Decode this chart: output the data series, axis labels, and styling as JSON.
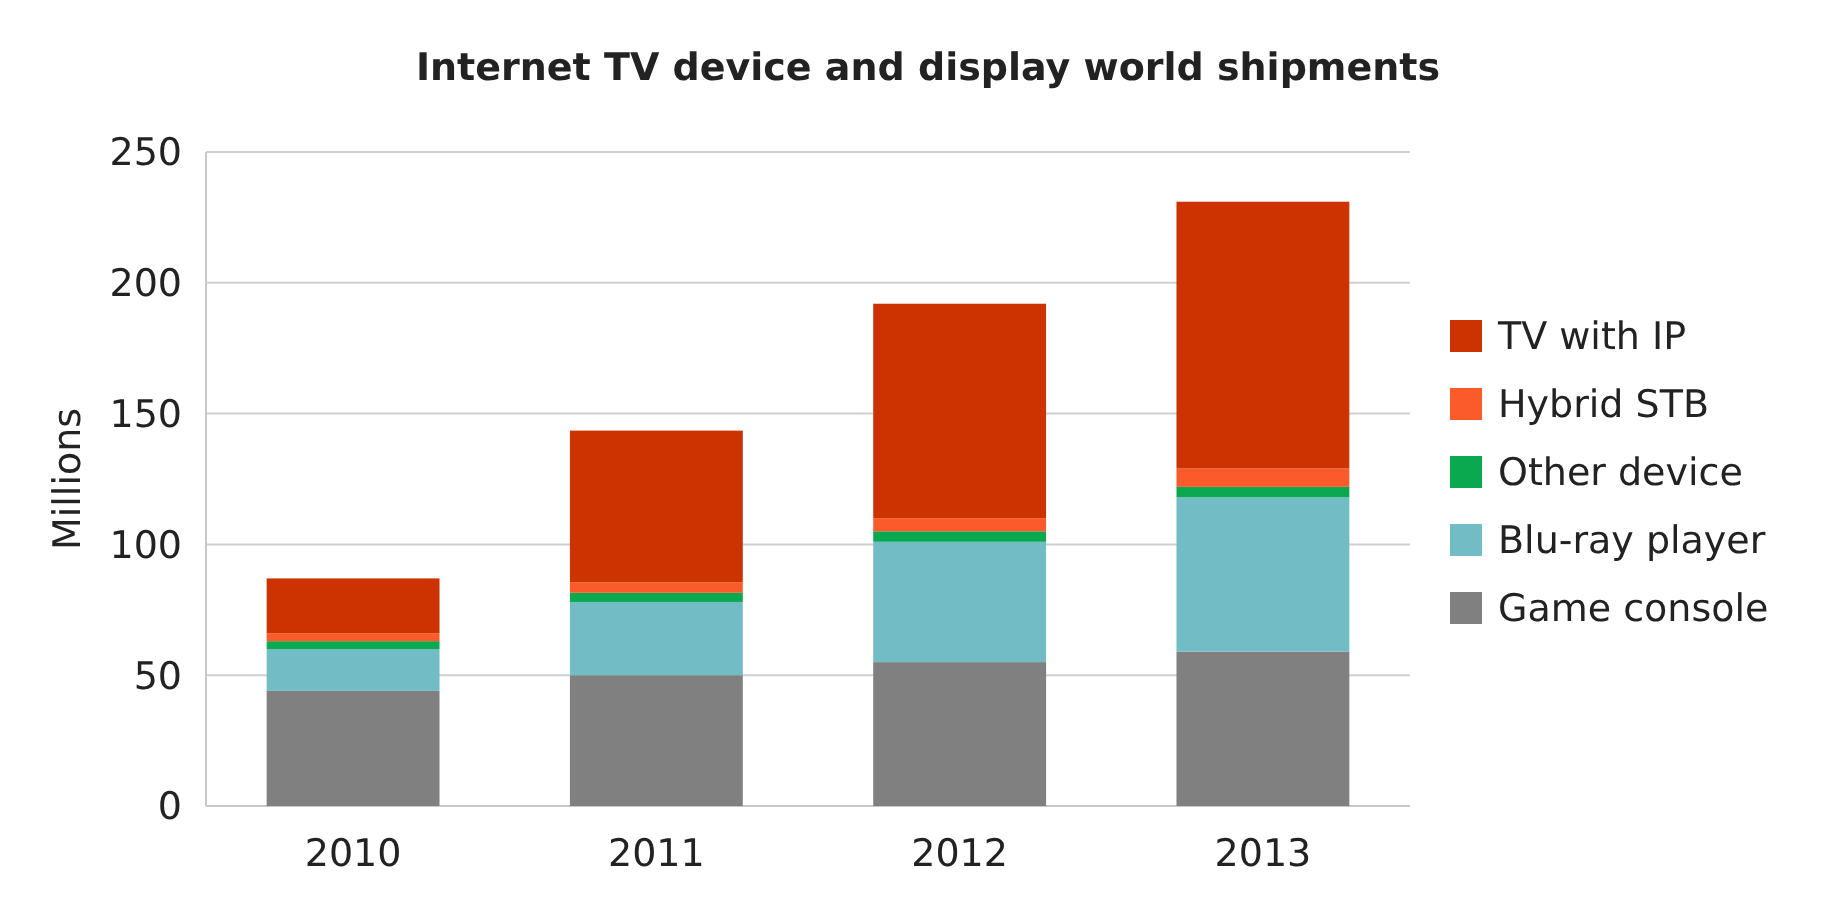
{
  "chart_data": {
    "type": "bar",
    "stacked": true,
    "title": "Internet TV device and display world shipments",
    "ylabel": "Millions",
    "categories": [
      "2010",
      "2011",
      "2012",
      "2013"
    ],
    "ylim": [
      0,
      250
    ],
    "yticks": [
      0,
      50,
      100,
      150,
      200,
      250
    ],
    "grid": "y",
    "legend": "right",
    "series": [
      {
        "name": "Game console",
        "color": "#808080",
        "values": [
          44,
          50,
          55,
          59
        ]
      },
      {
        "name": "Blu-ray player",
        "color": "#71bcc5",
        "values": [
          16,
          28,
          46,
          59
        ]
      },
      {
        "name": "Other device",
        "color": "#0aa84f",
        "values": [
          3,
          3.5,
          4,
          4
        ]
      },
      {
        "name": "Hybrid STB",
        "color": "#fb5a2a",
        "values": [
          3,
          4,
          5,
          7
        ]
      },
      {
        "name": "TV with IP",
        "color": "#cc3300",
        "values": [
          21,
          58,
          82,
          102
        ]
      }
    ]
  }
}
